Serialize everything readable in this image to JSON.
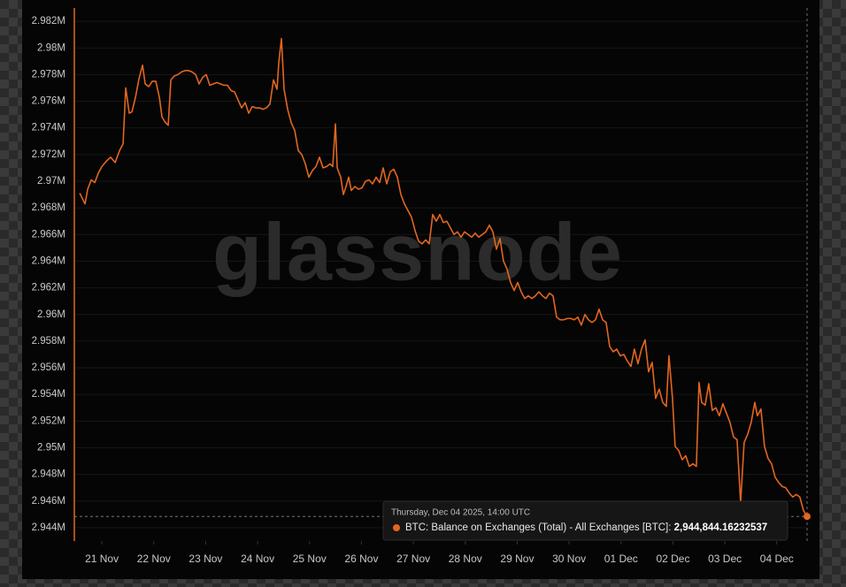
{
  "chart_data": {
    "type": "line",
    "watermark": "glassnode",
    "x": [
      -0.426,
      -0.375,
      -0.324,
      -0.273,
      -0.204,
      -0.136,
      -0.068,
      0,
      0.085,
      0.17,
      0.256,
      0.341,
      0.409,
      0.46,
      0.528,
      0.579,
      0.648,
      0.716,
      0.784,
      0.835,
      0.903,
      0.971,
      1.039,
      1.108,
      1.159,
      1.227,
      1.278,
      1.329,
      1.397,
      1.465,
      1.534,
      1.602,
      1.67,
      1.738,
      1.806,
      1.874,
      1.943,
      2.011,
      2.079,
      2.147,
      2.215,
      2.283,
      2.352,
      2.42,
      2.488,
      2.556,
      2.624,
      2.692,
      2.76,
      2.829,
      2.897,
      2.965,
      3.033,
      3.101,
      3.169,
      3.238,
      3.306,
      3.374,
      3.408,
      3.459,
      3.51,
      3.578,
      3.647,
      3.715,
      3.783,
      3.851,
      3.919,
      3.987,
      4.056,
      4.124,
      4.192,
      4.26,
      4.328,
      4.396,
      4.447,
      4.499,
      4.533,
      4.601,
      4.652,
      4.703,
      4.754,
      4.805,
      4.873,
      4.942,
      5.01,
      5.078,
      5.146,
      5.214,
      5.282,
      5.351,
      5.419,
      5.487,
      5.555,
      5.623,
      5.691,
      5.76,
      5.828,
      5.896,
      5.964,
      6.032,
      6.1,
      6.168,
      6.237,
      6.305,
      6.373,
      6.441,
      6.509,
      6.577,
      6.646,
      6.714,
      6.782,
      6.85,
      6.918,
      6.986,
      7.055,
      7.123,
      7.191,
      7.259,
      7.327,
      7.395,
      7.464,
      7.532,
      7.6,
      7.668,
      7.736,
      7.804,
      7.872,
      7.941,
      8.009,
      8.077,
      8.145,
      8.213,
      8.281,
      8.35,
      8.418,
      8.486,
      8.554,
      8.622,
      8.69,
      8.759,
      8.827,
      8.895,
      8.963,
      9.031,
      9.099,
      9.168,
      9.236,
      9.304,
      9.372,
      9.44,
      9.508,
      9.576,
      9.645,
      9.713,
      9.781,
      9.849,
      9.917,
      9.985,
      10.054,
      10.122,
      10.19,
      10.258,
      10.326,
      10.394,
      10.463,
      10.531,
      10.599,
      10.667,
      10.735,
      10.803,
      10.872,
      10.923,
      10.991,
      11.042,
      11.11,
      11.178,
      11.246,
      11.315,
      11.383,
      11.451,
      11.502,
      11.553,
      11.621,
      11.689,
      11.758,
      11.826,
      11.894,
      11.962,
      12.03,
      12.098,
      12.167,
      12.235,
      12.303,
      12.371,
      12.439,
      12.507,
      12.576,
      12.627,
      12.695,
      12.763,
      12.831,
      12.899,
      12.967,
      13.036,
      13.104,
      13.172,
      13.24,
      13.308,
      13.376,
      13.444,
      13.513,
      13.583
    ],
    "series": [
      {
        "color": "#e2661f",
        "values": [
          2969100,
          2968700,
          2968300,
          2969400,
          2970100,
          2969900,
          2970600,
          2971100,
          2971500,
          2971800,
          2971400,
          2972300,
          2972800,
          2977000,
          2975100,
          2975200,
          2976300,
          2977700,
          2978700,
          2977300,
          2977100,
          2977500,
          2977500,
          2976300,
          2974800,
          2974400,
          2974200,
          2977600,
          2977900,
          2978000,
          2978200,
          2978300,
          2978300,
          2978200,
          2978000,
          2977300,
          2977800,
          2978000,
          2977200,
          2977300,
          2977400,
          2977300,
          2977200,
          2977200,
          2976800,
          2976700,
          2976100,
          2975500,
          2975900,
          2975100,
          2975600,
          2975500,
          2975500,
          2975400,
          2975500,
          2975800,
          2977600,
          2976900,
          2978900,
          2980700,
          2976900,
          2975400,
          2974400,
          2973800,
          2972300,
          2972000,
          2971300,
          2970300,
          2970800,
          2971100,
          2971800,
          2971000,
          2971100,
          2971300,
          2971100,
          2974300,
          2971000,
          2970300,
          2969000,
          2969600,
          2970300,
          2969300,
          2969600,
          2969400,
          2969500,
          2970000,
          2970100,
          2969800,
          2970300,
          2969900,
          2971000,
          2969800,
          2970700,
          2970900,
          2970300,
          2969000,
          2968300,
          2967800,
          2967300,
          2966300,
          2965500,
          2965300,
          2965600,
          2965300,
          2967500,
          2967000,
          2967500,
          2966900,
          2967000,
          2966500,
          2966000,
          2966200,
          2965800,
          2966200,
          2966000,
          2965800,
          2966100,
          2965800,
          2966000,
          2966200,
          2966700,
          2966200,
          2964900,
          2965700,
          2964000,
          2963400,
          2962400,
          2961800,
          2962400,
          2961700,
          2961200,
          2961400,
          2961200,
          2961400,
          2961700,
          2961400,
          2961200,
          2961600,
          2961400,
          2959800,
          2959600,
          2959600,
          2959700,
          2959700,
          2959600,
          2959800,
          2959200,
          2960000,
          2959600,
          2959400,
          2959600,
          2960400,
          2959600,
          2959400,
          2957600,
          2957200,
          2957400,
          2956900,
          2957000,
          2956500,
          2956100,
          2957400,
          2956300,
          2957400,
          2958100,
          2955700,
          2956400,
          2953700,
          2954400,
          2953400,
          2953100,
          2956900,
          2953700,
          2950100,
          2949800,
          2949100,
          2949400,
          2948600,
          2948800,
          2948600,
          2954900,
          2953400,
          2953200,
          2954800,
          2952800,
          2953000,
          2952400,
          2953300,
          2952600,
          2951900,
          2950800,
          2950600,
          2945900,
          2950400,
          2951000,
          2951900,
          2953400,
          2952400,
          2952900,
          2950100,
          2949200,
          2948800,
          2947800,
          2947400,
          2947100,
          2947000,
          2946600,
          2946300,
          2946500,
          2946300,
          2945300,
          2944844.16232537
        ]
      }
    ],
    "xlim": [
      -0.53,
      13.583
    ],
    "xticks": [
      {
        "value": 0,
        "label": "21 Nov"
      },
      {
        "value": 1,
        "label": "22 Nov"
      },
      {
        "value": 2,
        "label": "23 Nov"
      },
      {
        "value": 3,
        "label": "24 Nov"
      },
      {
        "value": 4,
        "label": "25 Nov"
      },
      {
        "value": 5,
        "label": "26 Nov"
      },
      {
        "value": 6,
        "label": "27 Nov"
      },
      {
        "value": 7,
        "label": "28 Nov"
      },
      {
        "value": 8,
        "label": "29 Nov"
      },
      {
        "value": 9,
        "label": "30 Nov"
      },
      {
        "value": 10,
        "label": "01 Dec"
      },
      {
        "value": 11,
        "label": "02 Dec"
      },
      {
        "value": 12,
        "label": "03 Dec"
      },
      {
        "value": 13,
        "label": "04 Dec"
      }
    ],
    "ylim": [
      2943000,
      2983000
    ],
    "yticks": [
      {
        "value": 2944000,
        "label": "2.944M"
      },
      {
        "value": 2946000,
        "label": "2.946M"
      },
      {
        "value": 2948000,
        "label": "2.948M"
      },
      {
        "value": 2950000,
        "label": "2.95M"
      },
      {
        "value": 2952000,
        "label": "2.952M"
      },
      {
        "value": 2954000,
        "label": "2.954M"
      },
      {
        "value": 2956000,
        "label": "2.956M"
      },
      {
        "value": 2958000,
        "label": "2.958M"
      },
      {
        "value": 2960000,
        "label": "2.96M"
      },
      {
        "value": 2962000,
        "label": "2.962M"
      },
      {
        "value": 2964000,
        "label": "2.964M"
      },
      {
        "value": 2966000,
        "label": "2.966M"
      },
      {
        "value": 2968000,
        "label": "2.968M"
      },
      {
        "value": 2970000,
        "label": "2.97M"
      },
      {
        "value": 2972000,
        "label": "2.972M"
      },
      {
        "value": 2974000,
        "label": "2.974M"
      },
      {
        "value": 2976000,
        "label": "2.976M"
      },
      {
        "value": 2978000,
        "label": "2.978M"
      },
      {
        "value": 2980000,
        "label": "2.98M"
      },
      {
        "value": 2982000,
        "label": "2.982M"
      }
    ],
    "grid": true,
    "tooltip": {
      "date": "Thursday, Dec 04 2025, 14:00 UTC",
      "series_label": "BTC: Balance on Exchanges (Total) - All Exchanges [BTC]:",
      "value_label": "2,944,844.16232537"
    }
  }
}
